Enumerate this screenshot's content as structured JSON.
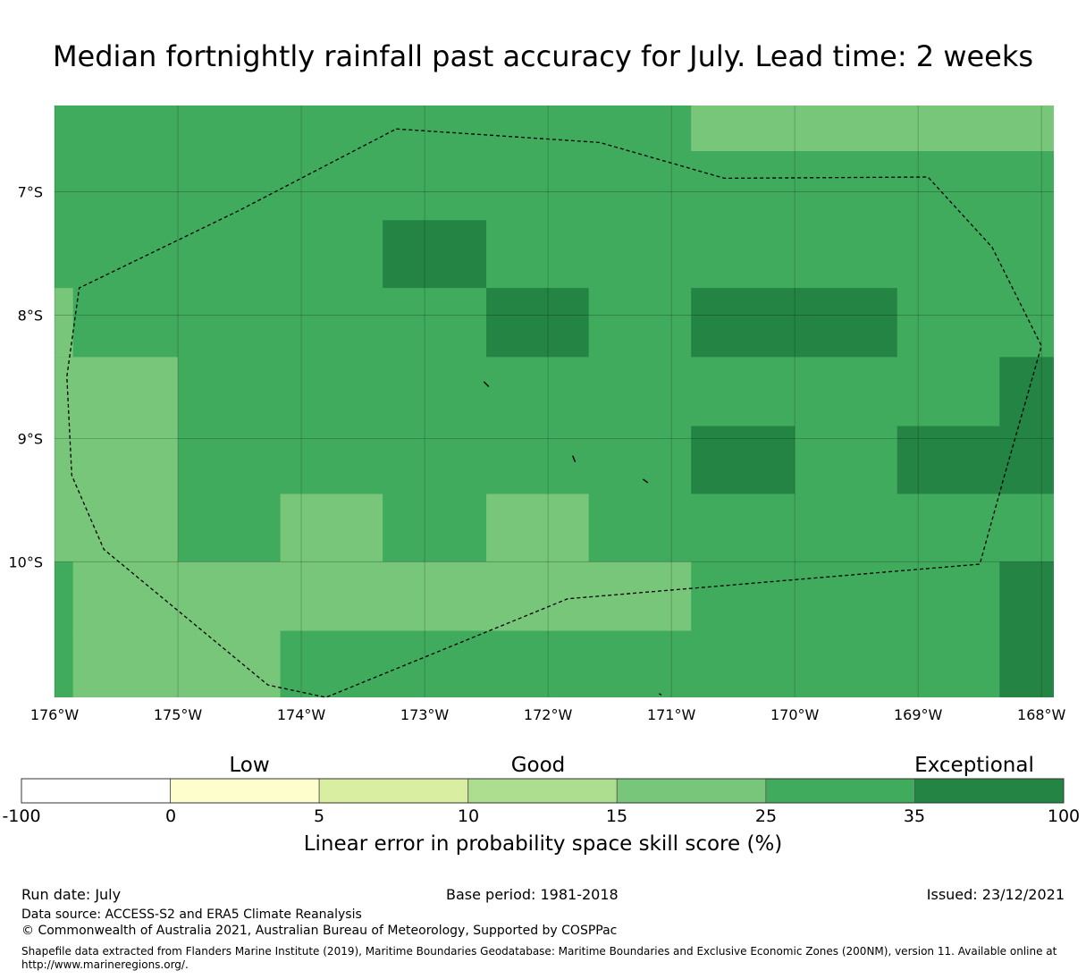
{
  "title": "Median fortnightly rainfall past accuracy for July. Lead time: 2 weeks",
  "map": {
    "lon_range": [
      -176,
      -167.9
    ],
    "lat_range": [
      -11.1,
      -6.3
    ],
    "lon_ticks": [
      {
        "value": -176,
        "label": "176°W"
      },
      {
        "value": -175,
        "label": "175°W"
      },
      {
        "value": -174,
        "label": "174°W"
      },
      {
        "value": -173,
        "label": "173°W"
      },
      {
        "value": -172,
        "label": "172°W"
      },
      {
        "value": -171,
        "label": "171°W"
      },
      {
        "value": -170,
        "label": "170°W"
      },
      {
        "value": -169,
        "label": "169°W"
      },
      {
        "value": -168,
        "label": "168°W"
      }
    ],
    "lat_ticks": [
      {
        "value": -7,
        "label": "7°S"
      },
      {
        "value": -8,
        "label": "8°S"
      },
      {
        "value": -9,
        "label": "9°S"
      },
      {
        "value": -10,
        "label": "10°S"
      }
    ],
    "background_category": 5,
    "cells": [
      {
        "lon": [
          -170.84,
          -167.9
        ],
        "lat": [
          -6.67,
          -6.3
        ],
        "category": 4
      },
      {
        "lon": [
          -173.34,
          -172.5
        ],
        "lat": [
          -7.78,
          -7.23
        ],
        "category": 6
      },
      {
        "lon": [
          -172.5,
          -171.67
        ],
        "lat": [
          -8.34,
          -7.78
        ],
        "category": 6
      },
      {
        "lon": [
          -170.84,
          -169.17
        ],
        "lat": [
          -8.34,
          -7.78
        ],
        "category": 6
      },
      {
        "lon": [
          -176.0,
          -175.85
        ],
        "lat": [
          -8.34,
          -7.78
        ],
        "category": 4
      },
      {
        "lon": [
          -176.0,
          -175.0
        ],
        "lat": [
          -10.0,
          -8.34
        ],
        "category": 4
      },
      {
        "lon": [
          -168.34,
          -167.9
        ],
        "lat": [
          -8.9,
          -8.34
        ],
        "category": 6
      },
      {
        "lon": [
          -170.84,
          -170.0
        ],
        "lat": [
          -9.45,
          -8.9
        ],
        "category": 6
      },
      {
        "lon": [
          -169.17,
          -167.9
        ],
        "lat": [
          -9.45,
          -8.9
        ],
        "category": 6
      },
      {
        "lon": [
          -174.17,
          -173.34
        ],
        "lat": [
          -10.0,
          -9.45
        ],
        "category": 4
      },
      {
        "lon": [
          -172.5,
          -171.67
        ],
        "lat": [
          -10.0,
          -9.45
        ],
        "category": 4
      },
      {
        "lon": [
          -175.85,
          -170.84
        ],
        "lat": [
          -10.56,
          -10.0
        ],
        "category": 4
      },
      {
        "lon": [
          -168.34,
          -167.9
        ],
        "lat": [
          -11.1,
          -10.0
        ],
        "category": 6
      },
      {
        "lon": [
          -175.85,
          -174.17
        ],
        "lat": [
          -11.1,
          -10.56
        ],
        "category": 4
      }
    ],
    "boundary": [
      [
        -173.23,
        -6.49
      ],
      [
        -171.58,
        -6.6
      ],
      [
        -170.57,
        -6.89
      ],
      [
        -168.92,
        -6.88
      ],
      [
        -168.4,
        -7.45
      ],
      [
        -168.0,
        -8.25
      ],
      [
        -168.3,
        -9.3
      ],
      [
        -168.5,
        -10.02
      ],
      [
        -171.84,
        -10.3
      ],
      [
        -173.8,
        -11.1
      ],
      [
        -174.27,
        -11.0
      ],
      [
        -175.02,
        -10.38
      ],
      [
        -175.6,
        -9.9
      ],
      [
        -175.86,
        -9.3
      ],
      [
        -175.9,
        -8.5
      ],
      [
        -175.8,
        -7.78
      ],
      [
        -174.5,
        -7.15
      ],
      [
        -173.23,
        -6.49
      ]
    ],
    "islands": [
      [
        [
          -172.52,
          -8.54
        ],
        [
          -172.48,
          -8.58
        ]
      ],
      [
        [
          -171.8,
          -9.14
        ],
        [
          -171.78,
          -9.19
        ]
      ],
      [
        [
          -171.23,
          -9.33
        ],
        [
          -171.19,
          -9.36
        ]
      ],
      [
        [
          -171.1,
          -11.07
        ],
        [
          -171.08,
          -11.08
        ]
      ]
    ]
  },
  "colorbar": {
    "categories": [
      {
        "color": "#ffffff"
      },
      {
        "color": "#fefdcc"
      },
      {
        "color": "#d9eea0"
      },
      {
        "color": "#addd8e"
      },
      {
        "color": "#78c679"
      },
      {
        "color": "#41ab5d"
      },
      {
        "color": "#238443"
      }
    ],
    "ticks": [
      "-100",
      "0",
      "5",
      "10",
      "15",
      "25",
      "35",
      "100"
    ],
    "labels": {
      "low": "Low",
      "good": "Good",
      "exceptional": "Exceptional"
    },
    "axis_label": "Linear error in probability space skill score (%)"
  },
  "footer": {
    "run_date": "Run date: July",
    "base_period": "Base period: 1981-2018",
    "issued": "Issued: 23/12/2021",
    "data_source": "Data source: ACCESS-S2 and ERA5 Climate Reanalysis",
    "copyright": "© Commonwealth of Australia 2021, Australian Bureau of Meteorology, Supported by COSPPac",
    "shapefile": "Shapefile data extracted from Flanders Marine Institute (2019), Maritime Boundaries Geodatabase: Maritime Boundaries and Exclusive Economic Zones (200NM), version 11. Available online at http://www.marineregions.org/."
  }
}
